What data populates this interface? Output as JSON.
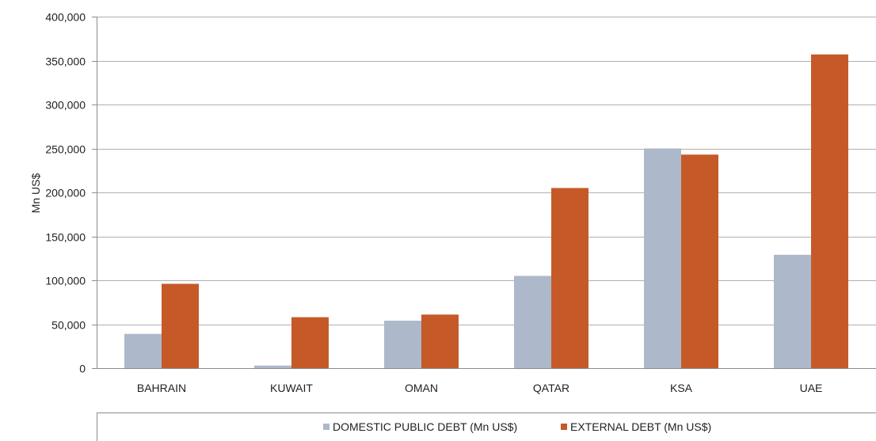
{
  "chart_data": {
    "type": "bar",
    "categories": [
      "BAHRAIN",
      "KUWAIT",
      "OMAN",
      "QATAR",
      "KSA",
      "UAE"
    ],
    "series": [
      {
        "name": "DOMESTIC PUBLIC DEBT (Mn US$)",
        "values": [
          39000,
          3000,
          54000,
          105000,
          250000,
          129000
        ]
      },
      {
        "name": "EXTERNAL DEBT (Mn US$)",
        "values": [
          96000,
          58000,
          61000,
          205000,
          243000,
          357000
        ]
      }
    ],
    "title": "",
    "xlabel": "",
    "ylabel": "Mn US$",
    "ylim": [
      0,
      400000
    ],
    "yticks": [
      0,
      50000,
      100000,
      150000,
      200000,
      250000,
      300000,
      350000,
      400000
    ],
    "ytick_labels": [
      "0",
      "50,000",
      "100,000",
      "150,000",
      "200,000",
      "250,000",
      "300,000",
      "350,000",
      "400,000"
    ],
    "grid": true,
    "legend_position": "bottom",
    "colors": {
      "series": [
        "#adb9ca",
        "#c55a28"
      ],
      "grid": "#b0b0b0",
      "axis": "#8c8c8c"
    }
  }
}
